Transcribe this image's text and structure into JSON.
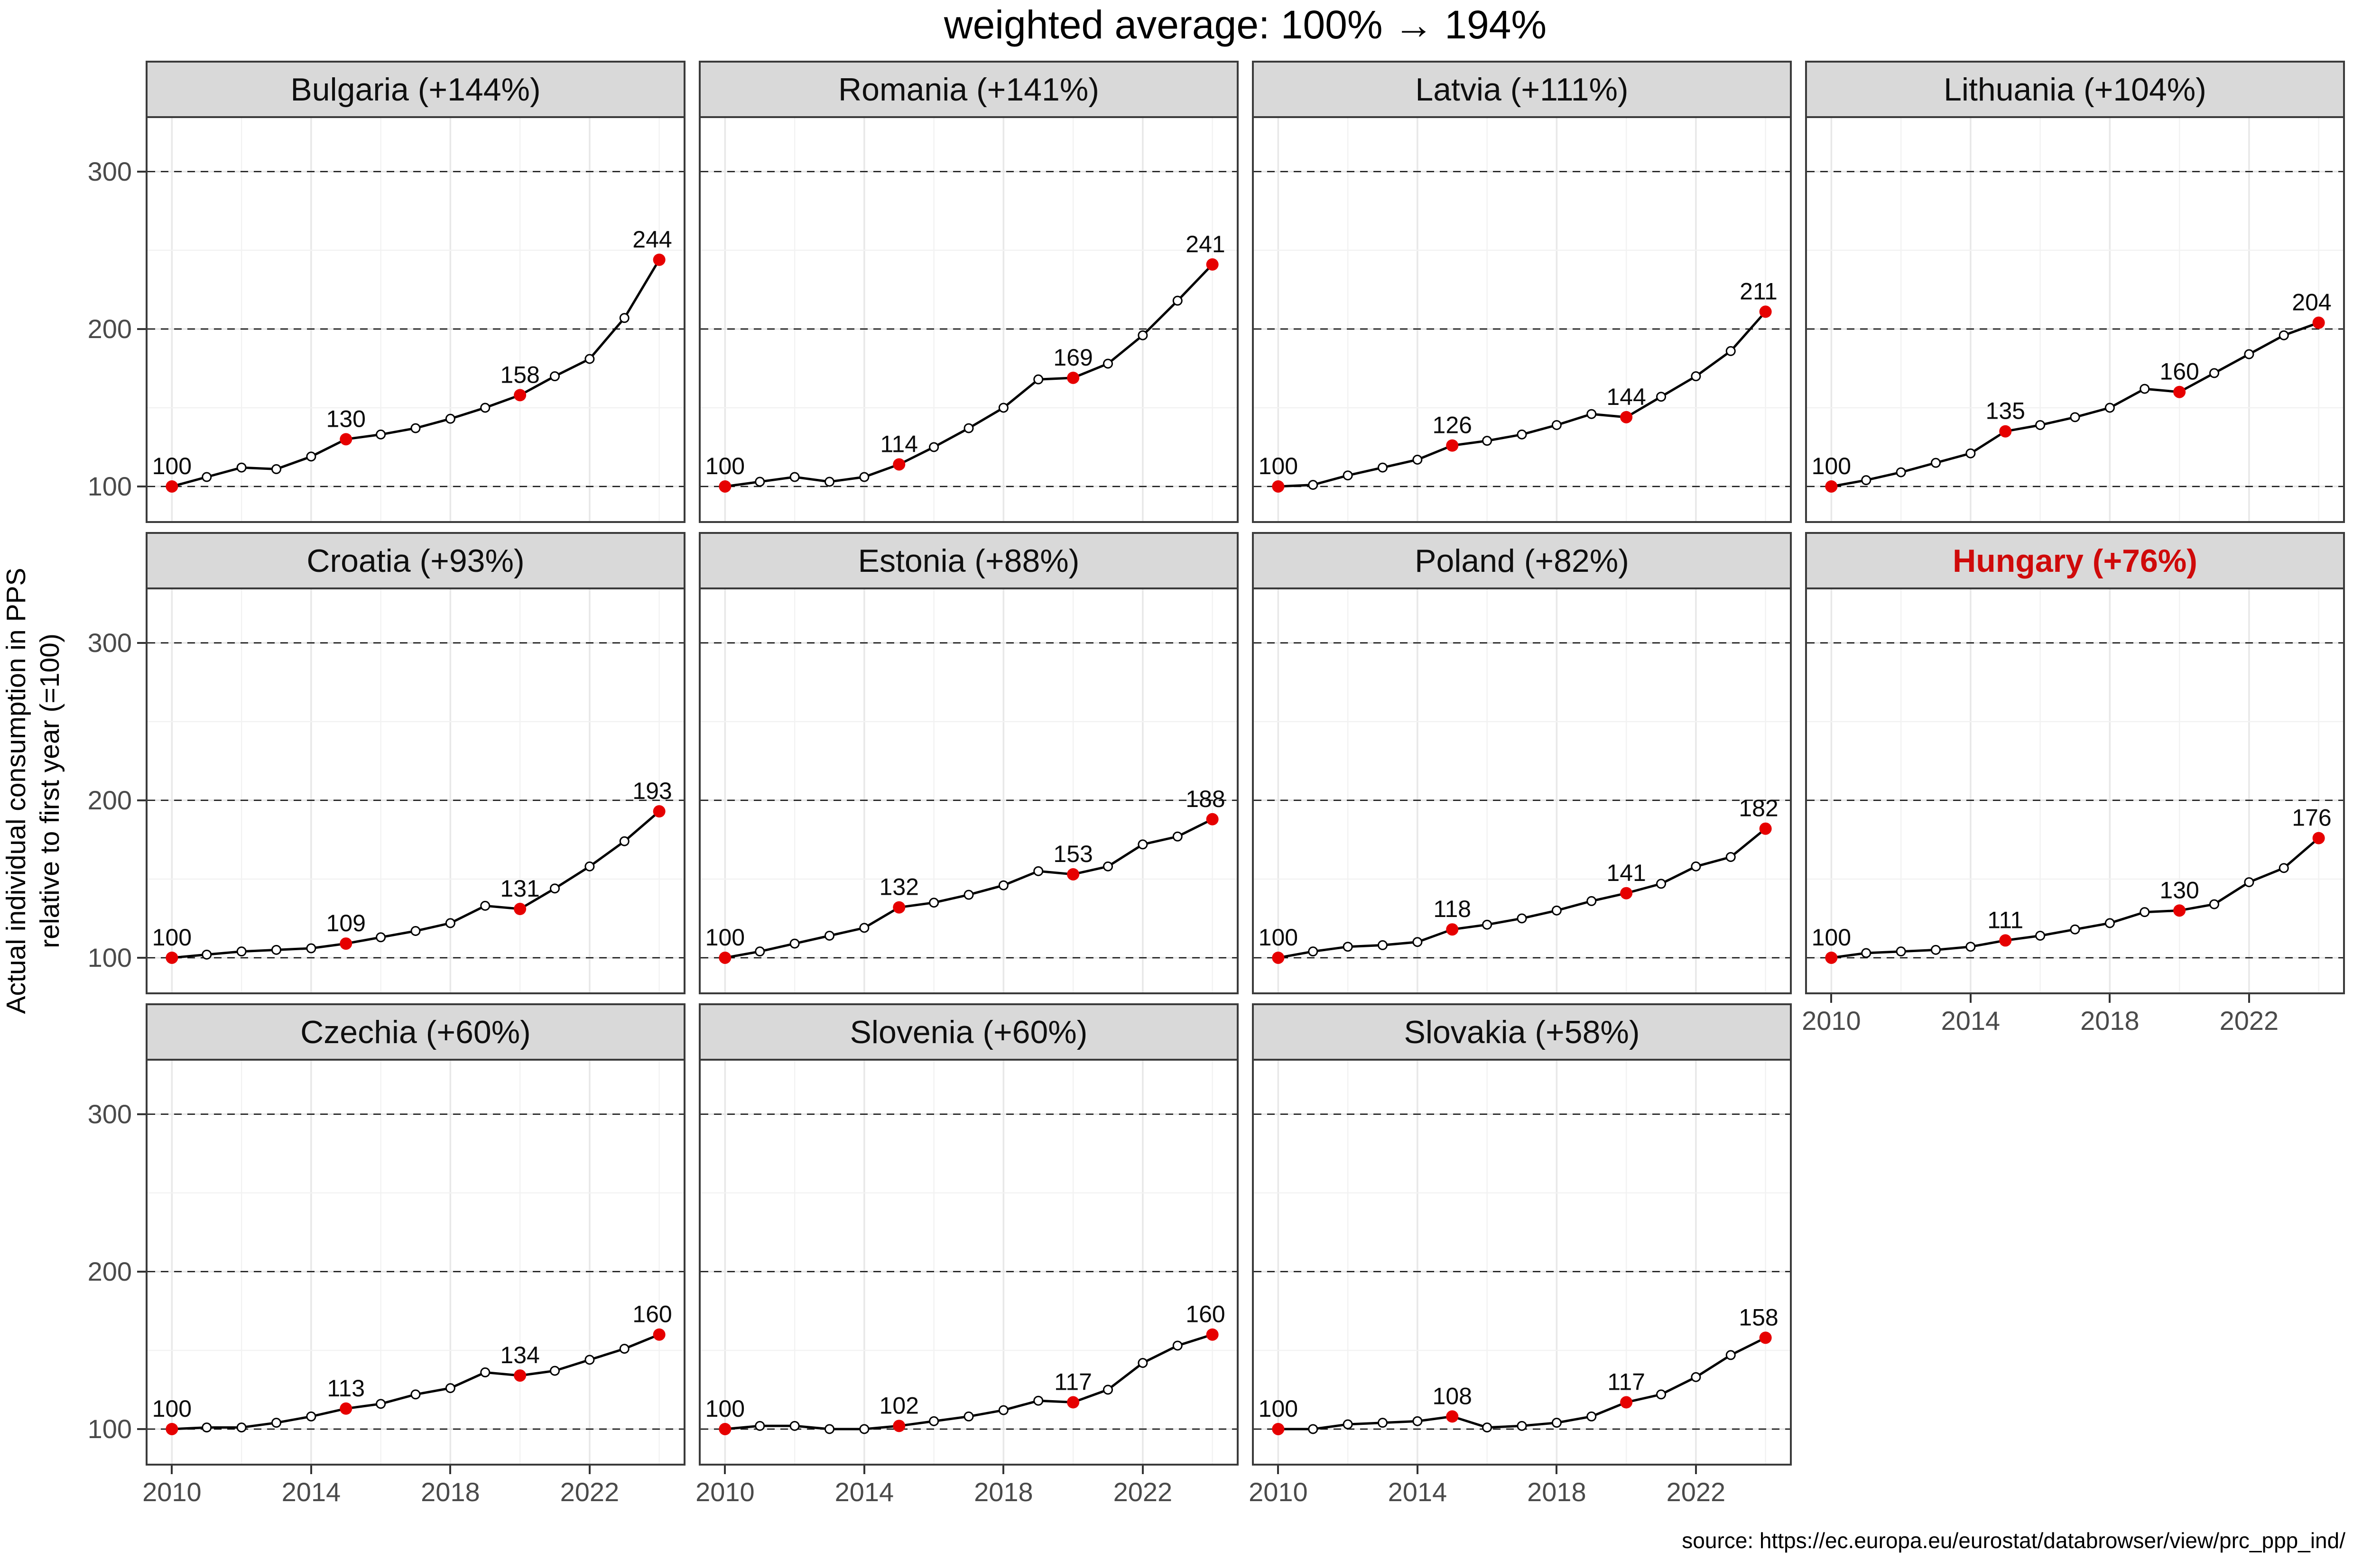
{
  "title": "weighted average: 100% → 194%",
  "source": "source: https://ec.europa.eu/eurostat/databrowser/view/prc_ppp_ind/",
  "y_axis": {
    "label_line1": "Actual individual consumption in PPS",
    "label_line2": "relative to first year (=100)",
    "tick_labels": [
      "100",
      "200",
      "300"
    ],
    "major_ticks": [
      100,
      200,
      300
    ],
    "minor_ticks": [
      150,
      250
    ],
    "range": [
      78,
      334
    ]
  },
  "x_axis": {
    "tick_labels": [
      "2010",
      "2014",
      "2018",
      "2022"
    ],
    "tick_years": [
      2010,
      2014,
      2018,
      2022
    ],
    "minor_years": [
      2012,
      2016,
      2020,
      2024
    ],
    "range": [
      2009.3,
      2024.7
    ]
  },
  "colors": {
    "strip_background": "#d9d9d9",
    "panel_border": "#3b3b3b",
    "line": "#000000",
    "highlight_point": "#e60000",
    "highlight_title": "#cf0a0a",
    "grid_major": "#e8e8e8",
    "grid_minor": "#f2f2f2",
    "dashed_reference": "#111111",
    "axis_text": "#4a4a4a"
  },
  "chart_data": {
    "type": "line",
    "title": "weighted average: 100% → 194%",
    "xlabel": "",
    "ylabel": "Actual individual consumption in PPS relative to first year (=100)",
    "x": [
      2010,
      2011,
      2012,
      2013,
      2014,
      2015,
      2016,
      2017,
      2018,
      2019,
      2020,
      2021,
      2022,
      2023,
      2024
    ],
    "ylim": [
      78,
      334
    ],
    "grid": true,
    "legend": "none",
    "labeled_years": [
      2010,
      2015,
      2020,
      2024
    ],
    "facets": [
      {
        "name": "bulgaria",
        "title": "Bulgaria (+144%)",
        "country": "Bulgaria",
        "pct_change": "+144%",
        "highlighted": false,
        "values": [
          100,
          106,
          112,
          111,
          119,
          130,
          133,
          137,
          143,
          150,
          158,
          170,
          181,
          207,
          244
        ],
        "point_labels": {
          "2010": "100",
          "2015": "130",
          "2020": "158",
          "2024": "244"
        }
      },
      {
        "name": "romania",
        "title": "Romania (+141%)",
        "country": "Romania",
        "pct_change": "+141%",
        "highlighted": false,
        "values": [
          100,
          103,
          106,
          103,
          106,
          114,
          125,
          137,
          150,
          168,
          169,
          178,
          196,
          218,
          241
        ],
        "point_labels": {
          "2010": "100",
          "2015": "114",
          "2020": "169",
          "2024": "241"
        }
      },
      {
        "name": "latvia",
        "title": "Latvia (+111%)",
        "country": "Latvia",
        "pct_change": "+111%",
        "highlighted": false,
        "values": [
          100,
          101,
          107,
          112,
          117,
          126,
          129,
          133,
          139,
          146,
          144,
          157,
          170,
          186,
          211
        ],
        "point_labels": {
          "2010": "100",
          "2015": "126",
          "2020": "144",
          "2024": "211"
        }
      },
      {
        "name": "lithuania",
        "title": "Lithuania (+104%)",
        "country": "Lithuania",
        "pct_change": "+104%",
        "highlighted": false,
        "values": [
          100,
          104,
          109,
          115,
          121,
          135,
          139,
          144,
          150,
          162,
          160,
          172,
          184,
          196,
          204
        ],
        "point_labels": {
          "2010": "100",
          "2015": "135",
          "2020": "160",
          "2024": "204"
        }
      },
      {
        "name": "croatia",
        "title": "Croatia (+93%)",
        "country": "Croatia",
        "pct_change": "+93%",
        "highlighted": false,
        "values": [
          100,
          102,
          104,
          105,
          106,
          109,
          113,
          117,
          122,
          133,
          131,
          144,
          158,
          174,
          193
        ],
        "point_labels": {
          "2010": "100",
          "2015": "109",
          "2020": "131",
          "2024": "193"
        }
      },
      {
        "name": "estonia",
        "title": "Estonia (+88%)",
        "country": "Estonia",
        "pct_change": "+88%",
        "highlighted": false,
        "values": [
          100,
          104,
          109,
          114,
          119,
          132,
          135,
          140,
          146,
          155,
          153,
          158,
          172,
          177,
          188
        ],
        "point_labels": {
          "2010": "100",
          "2015": "132",
          "2020": "153",
          "2024": "188"
        }
      },
      {
        "name": "poland",
        "title": "Poland (+82%)",
        "country": "Poland",
        "pct_change": "+82%",
        "highlighted": false,
        "values": [
          100,
          104,
          107,
          108,
          110,
          118,
          121,
          125,
          130,
          136,
          141,
          147,
          158,
          164,
          182
        ],
        "point_labels": {
          "2010": "100",
          "2015": "118",
          "2020": "141",
          "2024": "182"
        }
      },
      {
        "name": "hungary",
        "title": "Hungary (+76%)",
        "country": "Hungary",
        "pct_change": "+76%",
        "highlighted": true,
        "values": [
          100,
          103,
          104,
          105,
          107,
          111,
          114,
          118,
          122,
          129,
          130,
          134,
          148,
          157,
          176
        ],
        "point_labels": {
          "2010": "100",
          "2015": "111",
          "2020": "130",
          "2024": "176"
        }
      },
      {
        "name": "czechia",
        "title": "Czechia (+60%)",
        "country": "Czechia",
        "pct_change": "+60%",
        "highlighted": false,
        "values": [
          100,
          101,
          101,
          104,
          108,
          113,
          116,
          122,
          126,
          136,
          134,
          137,
          144,
          151,
          160
        ],
        "point_labels": {
          "2010": "100",
          "2015": "113",
          "2020": "134",
          "2024": "160"
        }
      },
      {
        "name": "slovenia",
        "title": "Slovenia (+60%)",
        "country": "Slovenia",
        "pct_change": "+60%",
        "highlighted": false,
        "values": [
          100,
          102,
          102,
          100,
          100,
          102,
          105,
          108,
          112,
          118,
          117,
          125,
          142,
          153,
          160
        ],
        "point_labels": {
          "2010": "100",
          "2015": "102",
          "2020": "117",
          "2024": "160"
        }
      },
      {
        "name": "slovakia",
        "title": "Slovakia (+58%)",
        "country": "Slovakia",
        "pct_change": "+58%",
        "highlighted": false,
        "values": [
          100,
          100,
          103,
          104,
          105,
          108,
          101,
          102,
          104,
          108,
          117,
          122,
          133,
          147,
          158
        ],
        "point_labels": {
          "2010": "100",
          "2015": "108",
          "2020": "117",
          "2024": "158"
        }
      }
    ]
  }
}
